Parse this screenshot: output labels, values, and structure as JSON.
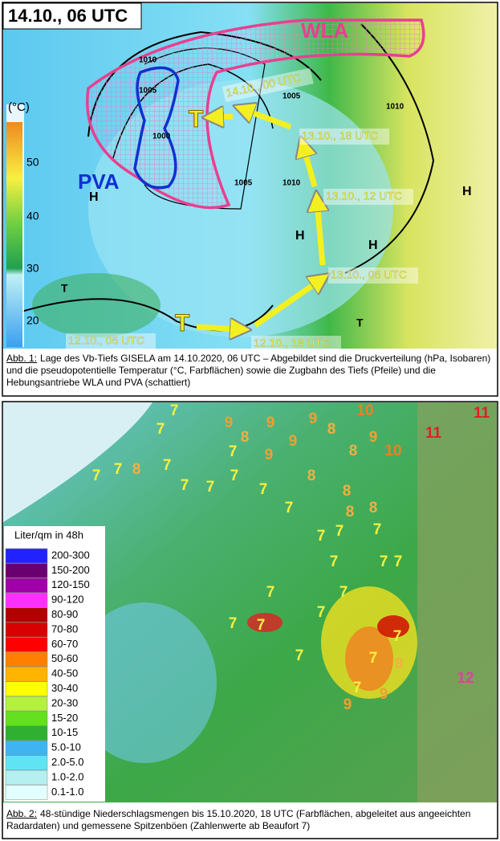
{
  "figure1": {
    "title": "14.10., 06 UTC",
    "colorbar": {
      "unit": "(°C)",
      "ticks": [
        "50",
        "40",
        "30",
        "20"
      ]
    },
    "regions": [
      "WLA",
      "PVA"
    ],
    "track_labels": [
      "14.10., 00 UTC",
      "13.10., 18 UTC",
      "13.10., 12 UTC",
      "13.10., 06 UTC",
      "12.10., 06 UTC",
      "12.10., 18 UTC"
    ],
    "pressure_centers": [
      "T",
      "T",
      "H",
      "H",
      "H",
      "H",
      "T",
      "T"
    ],
    "isobar_labels": [
      "1010",
      "1005",
      "1000",
      "1005",
      "1005",
      "1010",
      "1010"
    ],
    "caption": {
      "label": "Abb. 1:",
      "text": "Lage des Vb-Tiefs GISELA am 14.10.2020, 06 UTC – Abgebildet sind die Druckverteilung (hPa, Isobaren) und die pseudopotentielle Temperatur (°C, Farbflächen) sowie die Zugbahn des Tiefs (Pfeile) und die Hebungsantriebe WLA und PVA (schattiert)"
    }
  },
  "figure2": {
    "legend": {
      "title": "Liter/qm in 48h",
      "entries": [
        {
          "label": "200-300",
          "color": "#2222ff"
        },
        {
          "label": "150-200",
          "color": "#6a0070"
        },
        {
          "label": "120-150",
          "color": "#a000a8"
        },
        {
          "label": "90-120",
          "color": "#ff30ff"
        },
        {
          "label": "80-90",
          "color": "#b00000"
        },
        {
          "label": "70-80",
          "color": "#d80000"
        },
        {
          "label": "60-70",
          "color": "#ff0000"
        },
        {
          "label": "50-60",
          "color": "#ff8000"
        },
        {
          "label": "40-50",
          "color": "#ffb400"
        },
        {
          "label": "30-40",
          "color": "#ffff00"
        },
        {
          "label": "20-30",
          "color": "#b4f040"
        },
        {
          "label": "15-20",
          "color": "#64e020"
        },
        {
          "label": "10-15",
          "color": "#30b030"
        },
        {
          "label": "5.0-10",
          "color": "#40b4f0"
        },
        {
          "label": "2.0-5.0",
          "color": "#60e4f4"
        },
        {
          "label": "1.0-2.0",
          "color": "#b4f0f0"
        },
        {
          "label": "0.1-1.0",
          "color": "#e4ffff"
        }
      ]
    },
    "gusts": [
      {
        "value": "7",
        "color": "#f4f040"
      },
      {
        "value": "7",
        "color": "#f4f040"
      },
      {
        "value": "9",
        "color": "#f0a030"
      },
      {
        "value": "9",
        "color": "#f0a030"
      },
      {
        "value": "9",
        "color": "#f0a030"
      },
      {
        "value": "10",
        "color": "#f08020"
      },
      {
        "value": "8",
        "color": "#f0b040"
      },
      {
        "value": "8",
        "color": "#f0b040"
      },
      {
        "value": "9",
        "color": "#f0a030"
      },
      {
        "value": "8",
        "color": "#f0b040"
      },
      {
        "value": "10",
        "color": "#f08020"
      },
      {
        "value": "11",
        "color": "#e02020"
      },
      {
        "value": "11",
        "color": "#e02020"
      },
      {
        "value": "7",
        "color": "#f4f040"
      },
      {
        "value": "9",
        "color": "#f0a030"
      },
      {
        "value": "9",
        "color": "#f0a030"
      },
      {
        "value": "7",
        "color": "#f4f040"
      },
      {
        "value": "7",
        "color": "#f4f040"
      },
      {
        "value": "7",
        "color": "#f4f040"
      },
      {
        "value": "8",
        "color": "#f0b040"
      },
      {
        "value": "7",
        "color": "#f4f040"
      },
      {
        "value": "7",
        "color": "#f4f040"
      },
      {
        "value": "7",
        "color": "#f4f040"
      },
      {
        "value": "7",
        "color": "#f4f040"
      },
      {
        "value": "8",
        "color": "#f0b040"
      },
      {
        "value": "8",
        "color": "#f0b040"
      },
      {
        "value": "7",
        "color": "#f4f040"
      },
      {
        "value": "8",
        "color": "#f0b040"
      },
      {
        "value": "8",
        "color": "#f0b040"
      },
      {
        "value": "7",
        "color": "#f4f040"
      },
      {
        "value": "7",
        "color": "#f4f040"
      },
      {
        "value": "7",
        "color": "#f4f040"
      },
      {
        "value": "7",
        "color": "#f4f040"
      },
      {
        "value": "7",
        "color": "#f4f040"
      },
      {
        "value": "7",
        "color": "#f4f040"
      },
      {
        "value": "7",
        "color": "#f4f040"
      },
      {
        "value": "7",
        "color": "#f4f040"
      },
      {
        "value": "7",
        "color": "#f4f040"
      },
      {
        "value": "7",
        "color": "#f4f040"
      },
      {
        "value": "7",
        "color": "#f4f040"
      },
      {
        "value": "7",
        "color": "#f4f040"
      },
      {
        "value": "7",
        "color": "#f4f040"
      },
      {
        "value": "8",
        "color": "#f0b040"
      },
      {
        "value": "7",
        "color": "#f4f040"
      },
      {
        "value": "7",
        "color": "#f4f040"
      },
      {
        "value": "9",
        "color": "#f0a030"
      },
      {
        "value": "9",
        "color": "#f0a030"
      },
      {
        "value": "12",
        "color": "#e040a0"
      }
    ],
    "caption": {
      "label": "Abb. 2:",
      "text": "48-stündige Niederschlagsmengen bis 15.10.2020, 18 UTC (Farbflächen, abgeleitet aus angeeichten Radardaten) und gemessene Spitzenböen (Zahlenwerte ab Beaufort 7)"
    }
  }
}
